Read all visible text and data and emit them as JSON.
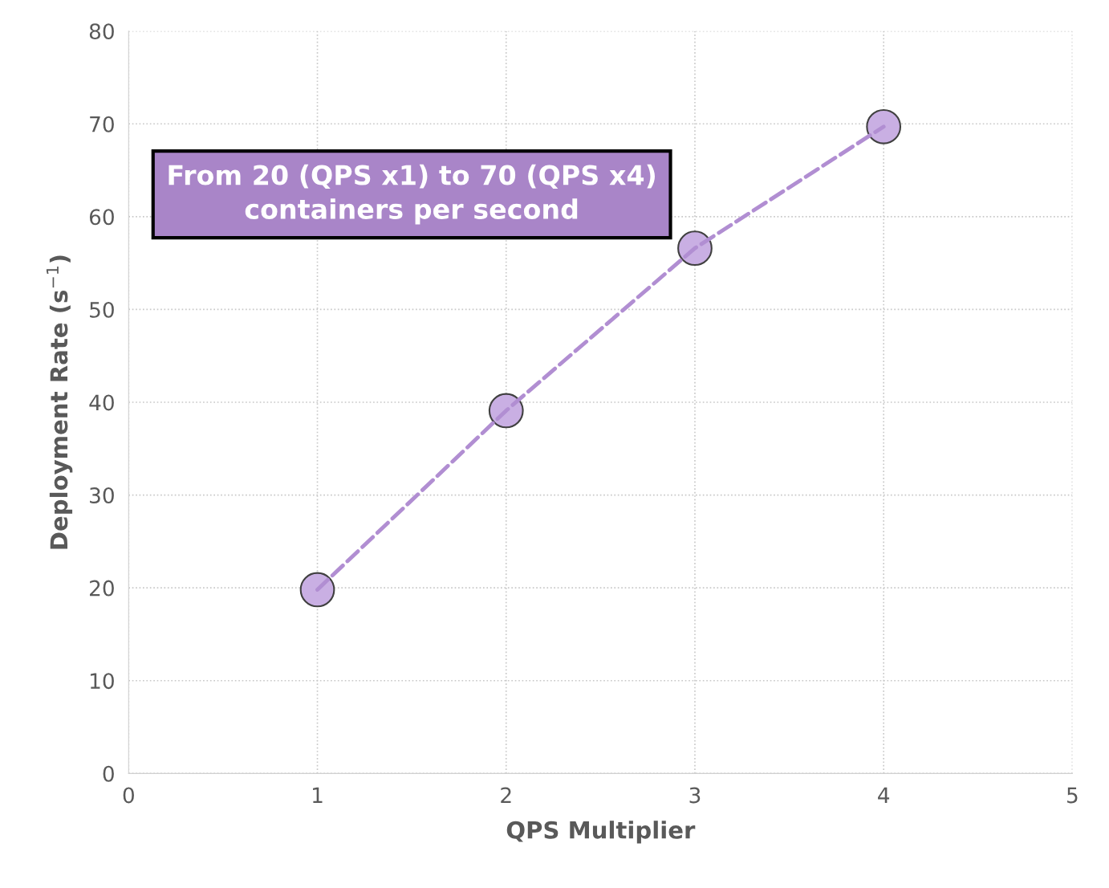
{
  "chart_data": {
    "type": "line",
    "xlabel": "QPS Multiplier",
    "ylabel": "Deployment Rate (s$^{−1}$)",
    "x": [
      1,
      2,
      3,
      4
    ],
    "series": [
      {
        "color": "#b18ed2",
        "values": [
          19.8,
          39.1,
          56.6,
          69.7
        ]
      }
    ],
    "marker": "circle",
    "line_style": "dashed",
    "xlim": [
      0,
      5
    ],
    "xticks": [
      0,
      1,
      2,
      3,
      4,
      5
    ],
    "ylim": [
      0,
      80
    ],
    "yticks": [
      0,
      10,
      20,
      30,
      40,
      50,
      60,
      70,
      80
    ],
    "grid": true,
    "annotations": [
      "From 20 (QPS x1) to 70 (QPS x4)\ncontainers per second"
    ]
  }
}
